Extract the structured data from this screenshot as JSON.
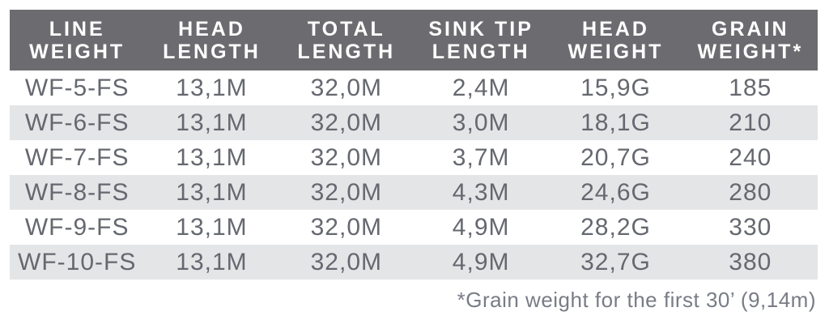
{
  "chart_data": {
    "type": "table",
    "columns": [
      {
        "label": "LINE WEIGHT",
        "line1": "LINE",
        "line2": "WEIGHT"
      },
      {
        "label": "HEAD LENGTH",
        "line1": "HEAD",
        "line2": "LENGTH"
      },
      {
        "label": "TOTAL LENGTH",
        "line1": "TOTAL",
        "line2": "LENGTH"
      },
      {
        "label": "SINK TIP LENGTH",
        "line1": "SINK TIP",
        "line2": "LENGTH"
      },
      {
        "label": "HEAD WEIGHT",
        "line1": "HEAD",
        "line2": "WEIGHT"
      },
      {
        "label": "GRAIN WEIGHT*",
        "line1": "GRAIN",
        "line2": "WEIGHT*"
      }
    ],
    "rows": [
      [
        "WF-5-FS",
        "13,1M",
        "32,0M",
        "2,4M",
        "15,9G",
        "185"
      ],
      [
        "WF-6-FS",
        "13,1M",
        "32,0M",
        "3,0M",
        "18,1G",
        "210"
      ],
      [
        "WF-7-FS",
        "13,1M",
        "32,0M",
        "3,7M",
        "20,7G",
        "240"
      ],
      [
        "WF-8-FS",
        "13,1M",
        "32,0M",
        "4,3M",
        "24,6G",
        "280"
      ],
      [
        "WF-9-FS",
        "13,1M",
        "32,0M",
        "4,9M",
        "28,2G",
        "330"
      ],
      [
        "WF-10-FS",
        "13,1M",
        "32,0M",
        "4,9M",
        "32,7G",
        "380"
      ]
    ],
    "footnote": "*Grain weight for the first 30’ (9,14m)",
    "layout": {
      "stripe_rows": "even",
      "header_align": "center",
      "cell_align": "center",
      "footnote_align": "right"
    }
  },
  "colors": {
    "header_bg": "#6c6c70",
    "header_text": "#ffffff",
    "row_text": "#65686f",
    "stripe_bg": "#e4e5e7",
    "footnote_text": "#787c85",
    "page_bg": "#ffffff"
  }
}
